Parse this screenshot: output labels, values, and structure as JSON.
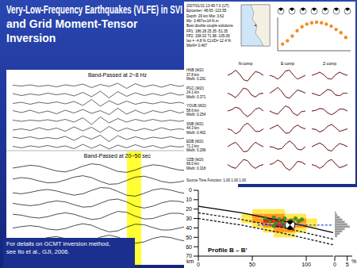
{
  "title": [
    "Very-Low-Frequency Earthquakes (VLFE) in SVI",
    "and Grid Moment-Tensor",
    "Inversion"
  ],
  "footnote": [
    "For details on GCMT inversion method,",
    "see Ito et al., GJI, 2006."
  ],
  "seismograms": {
    "top_label": "Band-Passed at 2~8 Hz",
    "bottom_label": "Band-Passed at 20~50 sec",
    "highlight_color": "#ffff33",
    "top_traces": [
      [
        0.1,
        -0.1,
        0.2,
        -0.2,
        0.1,
        -0.3,
        0.2,
        -0.1,
        0.4,
        -0.5,
        0.3,
        -0.2,
        0.6,
        -0.7,
        0.5,
        -0.3,
        0.2,
        -0.4,
        0.3,
        -0.2,
        0.2,
        -0.1,
        0.1,
        -0.1
      ],
      [
        0.2,
        -0.3,
        0.1,
        -0.2,
        0.3,
        -0.1,
        0.2,
        -0.4,
        0.5,
        -0.6,
        0.8,
        -0.9,
        0.7,
        -0.5,
        0.4,
        -0.3,
        0.2,
        -0.3,
        0.4,
        -0.2,
        0.1,
        -0.2,
        0.2,
        -0.1
      ],
      [
        -0.1,
        0.2,
        -0.3,
        0.2,
        -0.1,
        0.3,
        -0.2,
        0.4,
        -0.6,
        0.9,
        -0.8,
        0.6,
        -0.4,
        0.5,
        -0.3,
        0.2,
        -0.2,
        0.3,
        -0.1,
        0.2,
        -0.3,
        0.2,
        -0.1,
        0.1
      ],
      [
        0.3,
        -0.2,
        0.4,
        -0.3,
        0.2,
        -0.5,
        0.4,
        -0.3,
        0.6,
        -0.4,
        0.3,
        -0.7,
        0.9,
        -0.6,
        0.4,
        -0.5,
        0.3,
        -0.2,
        0.4,
        -0.3,
        0.2,
        -0.3,
        0.1,
        -0.2
      ],
      [
        0.1,
        -0.2,
        0.1,
        -0.1,
        0.2,
        -0.2,
        0.3,
        -0.4,
        0.7,
        -1.0,
        0.9,
        -0.6,
        0.5,
        -0.4,
        0.3,
        -0.2,
        0.3,
        -0.2,
        0.1,
        -0.2,
        0.1,
        -0.1,
        0.2,
        -0.1
      ],
      [
        -0.2,
        0.1,
        -0.3,
        0.4,
        -0.2,
        0.3,
        -0.5,
        0.6,
        -0.4,
        0.5,
        -0.8,
        0.7,
        -0.5,
        0.3,
        -0.4,
        0.2,
        -0.3,
        0.4,
        -0.2,
        0.1,
        -0.2,
        0.3,
        -0.1,
        0.1
      ],
      [
        0.2,
        -0.1,
        0.3,
        -0.2,
        0.1,
        -0.2,
        0.4,
        -0.6,
        0.5,
        -0.3,
        0.7,
        -0.9,
        0.6,
        -0.4,
        0.3,
        -0.3,
        0.2,
        -0.1,
        0.3,
        -0.2,
        0.1,
        -0.1,
        0.2,
        -0.2
      ],
      [
        0.1,
        -0.3,
        0.2,
        -0.1,
        0.3,
        -0.2,
        0.2,
        -0.5,
        0.6,
        -0.4,
        0.5,
        -0.6,
        0.4,
        -0.3,
        0.5,
        -0.2,
        0.3,
        -0.4,
        0.2,
        -0.1,
        0.2,
        -0.2,
        0.1,
        -0.1
      ]
    ],
    "bottom_traces": [
      [
        0,
        0.3,
        0.6,
        0.4,
        -0.1,
        -0.6,
        -0.8,
        -0.3,
        0.4,
        0.9,
        0.7,
        0,
        -0.7,
        -0.9,
        -0.4,
        0.3,
        0.7,
        0.5,
        0,
        -0.4,
        -0.5,
        -0.2,
        0.2,
        0.3
      ],
      [
        0.2,
        0.5,
        0.3,
        -0.2,
        -0.6,
        -0.5,
        0,
        0.6,
        0.9,
        0.5,
        -0.3,
        -0.9,
        -0.8,
        -0.1,
        0.6,
        0.8,
        0.3,
        -0.3,
        -0.6,
        -0.4,
        0,
        0.3,
        0.3,
        0.1
      ],
      [
        -0.2,
        -0.4,
        -0.1,
        0.3,
        0.5,
        0.2,
        -0.3,
        -0.7,
        -0.4,
        0.3,
        0.9,
        0.8,
        0.1,
        -0.7,
        -0.9,
        -0.3,
        0.4,
        0.7,
        0.4,
        -0.1,
        -0.4,
        -0.3,
        0,
        0.2
      ],
      [
        0.1,
        -0.2,
        -0.4,
        -0.2,
        0.3,
        0.6,
        0.4,
        -0.2,
        -0.7,
        -0.6,
        0.1,
        0.8,
        1.0,
        0.4,
        -0.5,
        -0.9,
        -0.5,
        0.2,
        0.6,
        0.5,
        0.1,
        -0.3,
        -0.3,
        0
      ],
      [
        0.3,
        0.1,
        -0.3,
        -0.5,
        -0.2,
        0.3,
        0.6,
        0.3,
        -0.3,
        -0.8,
        -0.6,
        0.2,
        0.9,
        0.7,
        -0.1,
        -0.7,
        -0.6,
        0,
        0.5,
        0.5,
        0.1,
        -0.3,
        -0.2,
        0.1
      ],
      [
        -0.1,
        0.2,
        0.4,
        0.2,
        -0.3,
        -0.5,
        -0.2,
        0.4,
        0.8,
        0.5,
        -0.3,
        -0.9,
        -0.7,
        0.1,
        0.7,
        0.6,
        0,
        -0.5,
        -0.5,
        -0.1,
        0.3,
        0.4,
        0.1,
        -0.2
      ],
      [
        0,
        -0.3,
        -0.5,
        -0.1,
        0.4,
        0.6,
        0.2,
        -0.5,
        -0.8,
        -0.3,
        0.5,
        0.9,
        0.5,
        -0.3,
        -0.8,
        -0.5,
        0.2,
        0.6,
        0.4,
        -0.1,
        -0.4,
        -0.2,
        0.1,
        0.2
      ]
    ]
  },
  "event": {
    "lines": [
      "2007/01/31 13:45:7.0 (UT)",
      "Epicenter: 48.65 -123.55",
      "Depth: 29 km   Mw: 3.62",
      "Mo: 3.467e+14 N.m",
      "Best double couple solutions",
      "FP1: 186.28 25.35 -51.35",
      "FP2: 338.02 71.98 -105.09",
      "Iso = -4.8 %  CLVD= 12.4 %",
      "Misfit= 0.467"
    ]
  },
  "waveform_fits": {
    "components": [
      "N-comp",
      "E-comp",
      "Z-comp"
    ],
    "source_time_function": "Source Time Function: 1.00 1.00 1.00",
    "stations": [
      {
        "label": [
          "HNB (W2I)",
          "37.8 km",
          "Misfit: 0.291"
        ],
        "waveforms": [
          [
            0,
            0.3,
            0.8,
            0.2,
            -0.7,
            -0.9,
            -0.1,
            0.6,
            0.4,
            0
          ],
          [
            0,
            -0.2,
            -0.6,
            -0.1,
            0.7,
            0.8,
            0,
            -0.6,
            -0.3,
            0
          ],
          [
            0,
            0.2,
            0.5,
            0.1,
            -0.5,
            -0.6,
            0.1,
            0.5,
            0.2,
            0
          ]
        ]
      },
      {
        "label": [
          "PGC (W2I)",
          "24.1 km",
          "Misfit: 0.371"
        ],
        "waveforms": [
          [
            0,
            -0.3,
            -0.7,
            0,
            0.8,
            0.6,
            -0.3,
            -0.6,
            -0.1,
            0
          ],
          [
            0,
            0.4,
            0.9,
            0.3,
            -0.6,
            -0.8,
            -0.1,
            0.5,
            0.3,
            0
          ],
          [
            0,
            -0.2,
            -0.4,
            0.1,
            0.6,
            0.4,
            -0.3,
            -0.4,
            0,
            0
          ]
        ]
      },
      {
        "label": [
          "YOUB (W2I)",
          "58.6 km",
          "Misfit: 0.254"
        ],
        "waveforms": [
          [
            0,
            0.2,
            0.6,
            0.4,
            -0.4,
            -0.9,
            -0.4,
            0.3,
            0.5,
            0
          ],
          [
            0,
            -0.3,
            -0.5,
            0.2,
            0.8,
            0.5,
            -0.4,
            -0.7,
            -0.1,
            0
          ],
          [
            0,
            0.1,
            0.4,
            0.3,
            -0.3,
            -0.6,
            -0.2,
            0.3,
            0.3,
            0
          ]
        ]
      },
      {
        "label": [
          "SNB (W2I)",
          "44.3 km",
          "Misfit: 0.402"
        ],
        "waveforms": [
          [
            0,
            -0.2,
            -0.8,
            -0.4,
            0.5,
            0.9,
            0.3,
            -0.4,
            -0.4,
            0
          ],
          [
            0,
            0.3,
            0.6,
            0,
            -0.7,
            -0.6,
            0.2,
            0.6,
            0.2,
            0
          ],
          [
            0,
            -0.1,
            -0.5,
            -0.2,
            0.4,
            0.7,
            0.2,
            -0.4,
            -0.2,
            0
          ]
        ]
      },
      {
        "label": [
          "EDB (W2I)",
          "71.2 km",
          "Misfit: 0.296"
        ],
        "waveforms": [
          [
            0,
            0.4,
            0.7,
            0,
            -0.8,
            -0.7,
            0.1,
            0.7,
            0.3,
            0
          ],
          [
            0,
            -0.1,
            -0.4,
            -0.3,
            0.4,
            0.9,
            0.4,
            -0.4,
            -0.5,
            0
          ],
          [
            0,
            0.3,
            0.6,
            0.2,
            -0.5,
            -0.7,
            0,
            0.5,
            0.3,
            0
          ]
        ]
      },
      {
        "label": [
          "OZB (W2I)",
          "66.0 km",
          "Misfit: 0.318"
        ],
        "waveforms": [
          [
            0,
            -0.4,
            -0.6,
            0.1,
            0.8,
            0.6,
            -0.2,
            -0.6,
            -0.2,
            0
          ],
          [
            0,
            0.2,
            0.7,
            0.4,
            -0.5,
            -0.9,
            -0.3,
            0.5,
            0.4,
            0
          ],
          [
            0,
            -0.2,
            -0.6,
            -0.2,
            0.5,
            0.8,
            0.1,
            -0.5,
            -0.3,
            0
          ]
        ]
      }
    ]
  },
  "chart_data": [
    {
      "type": "scatter",
      "x": [
        15,
        17,
        19,
        21,
        23,
        25,
        27,
        29,
        31,
        33,
        35,
        37,
        39,
        41
      ],
      "values": [
        0.3,
        0.35,
        0.42,
        0.5,
        0.56,
        0.6,
        0.62,
        0.63,
        0.62,
        0.6,
        0.57,
        0.52,
        0.47,
        0.4
      ],
      "xlim": [
        13,
        43
      ],
      "xticks": [
        15,
        25,
        35
      ],
      "ylim": [
        0.2,
        0.7
      ],
      "yticks": [
        0.3,
        0.5
      ],
      "tick_labels": false,
      "color": "#f28c28",
      "marker": "circle"
    },
    {
      "type": "scatter",
      "title": "Profile B – B'",
      "ylabel": "km",
      "xlim": [
        0,
        125
      ],
      "xticks": [
        0,
        50,
        100
      ],
      "ylim": [
        0,
        70
      ],
      "yticks": [
        0,
        10,
        20,
        30,
        40,
        50,
        60,
        70
      ],
      "series": [
        {
          "type": "cells",
          "colors": [
            "#ffe94d",
            "#ff9a1f",
            "#e8261a"
          ],
          "x": [
            55,
            65,
            75,
            45,
            55,
            65,
            75,
            85,
            95,
            45,
            55,
            65,
            75,
            85,
            95,
            105,
            55,
            65,
            75,
            85,
            95,
            105,
            65,
            75,
            85,
            95,
            75,
            85
          ],
          "y": [
            22.5,
            22.5,
            22.5,
            27.5,
            27.5,
            27.5,
            27.5,
            27.5,
            27.5,
            32.5,
            32.5,
            32.5,
            32.5,
            32.5,
            32.5,
            32.5,
            37.5,
            37.5,
            37.5,
            37.5,
            37.5,
            37.5,
            42.5,
            42.5,
            42.5,
            42.5,
            47.5,
            47.5
          ],
          "values": [
            1,
            1,
            1,
            1,
            2,
            2,
            2,
            1,
            1,
            1,
            2,
            3,
            3,
            2,
            2,
            1,
            1,
            2,
            3,
            3,
            2,
            1,
            1,
            2,
            2,
            1,
            1,
            1
          ]
        },
        {
          "type": "line",
          "color": "#000000",
          "line_style": "solid",
          "x": [
            0,
            40,
            80,
            125
          ],
          "values": [
            17,
            24,
            33,
            45
          ]
        },
        {
          "type": "line",
          "color": "#000000",
          "line_style": "dashed",
          "x": [
            0,
            40,
            80,
            125
          ],
          "values": [
            24,
            31,
            40,
            52
          ]
        },
        {
          "type": "line",
          "color": "#000000",
          "line_style": "dashed",
          "x": [
            0,
            40,
            80,
            125
          ],
          "values": [
            30,
            37,
            46,
            58
          ]
        },
        {
          "type": "line",
          "color": "#3355dd",
          "line_style": "dashed",
          "x": [
            55,
            125
          ],
          "values": [
            37,
            37
          ]
        },
        {
          "type": "scatter",
          "color": "#2e9e2e",
          "marker": "circle",
          "x": [
            62,
            66,
            70,
            72,
            75,
            78,
            80,
            83,
            86,
            88,
            90,
            93,
            96,
            70,
            80
          ],
          "values": [
            30,
            33,
            29,
            35,
            31,
            34,
            30,
            36,
            32,
            35,
            30,
            33,
            31,
            38,
            38
          ]
        },
        {
          "type": "scatter",
          "color": "#000000",
          "marker": "beachball",
          "x": [
            85
          ],
          "values": [
            37
          ]
        }
      ]
    },
    {
      "type": "bar",
      "orientation": "horizontal",
      "bins": [
        20,
        22.5,
        25,
        27.5,
        30,
        32.5,
        35,
        37.5,
        40,
        42.5,
        45,
        47.5
      ],
      "values": [
        1,
        2,
        3,
        4,
        6,
        5,
        4,
        3,
        2,
        1,
        0.5
      ],
      "xlim": [
        0,
        7
      ],
      "xticks": [
        0,
        5
      ],
      "xlabel": "%",
      "ylim": [
        0,
        70
      ],
      "tick_labels": "x",
      "color": "#9a9a9a"
    }
  ]
}
